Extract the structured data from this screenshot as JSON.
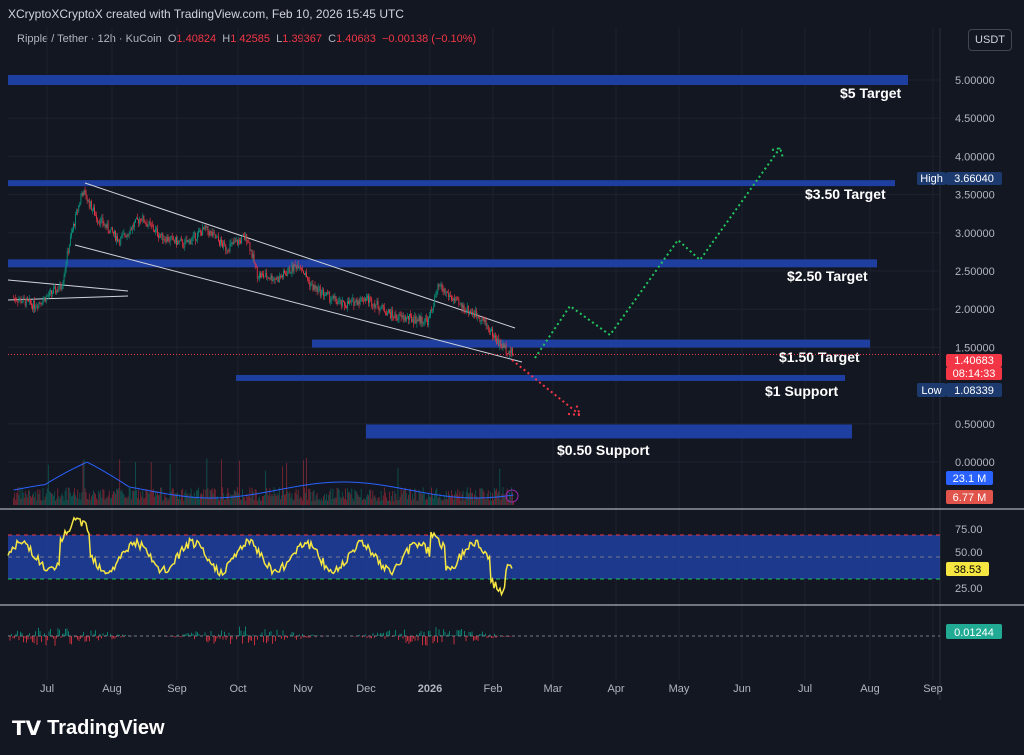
{
  "header": {
    "credit": "XCryptoXCryptoX created with TradingView.com, Feb 10, 2026 15:45 UTC"
  },
  "legend": {
    "symbol": "Ripple / Tether · 12h · KuCoin",
    "o_label": "O",
    "o": "1.40824",
    "h_label": "H",
    "h": "1.42585",
    "l_label": "L",
    "l": "1.39367",
    "c_label": "C",
    "c": "1.40683",
    "change": "−0.00138 (−0.10%)"
  },
  "currency_button": "USDT",
  "colors": {
    "bg": "#131722",
    "zone": "#1e3fa0",
    "up": "#089981",
    "down": "#f23645",
    "rsi": "#f5e642",
    "green_path": "#22c55e",
    "red_path": "#f23645"
  },
  "price_axis": {
    "ticks": [
      "5.00000",
      "4.50000",
      "4.00000",
      "3.50000",
      "3.00000",
      "2.50000",
      "2.00000",
      "1.50000",
      "0.50000",
      "0.00000"
    ],
    "tick_values": [
      5,
      4.5,
      4,
      3.5,
      3,
      2.5,
      2,
      1.5,
      0.5,
      0
    ]
  },
  "badges": {
    "high_label": "High",
    "high": "3.66040",
    "price": "1.40683",
    "countdown": "08:14:33",
    "low_label": "Low",
    "low": "1.08339",
    "vol1": "23.1 M",
    "vol2": "6.77 M",
    "rsi": "38.53",
    "macd": "0.01244"
  },
  "rsi_axis": [
    "75.00",
    "50.00",
    "25.00"
  ],
  "time_axis": [
    "Jul",
    "Aug",
    "Sep",
    "Oct",
    "Nov",
    "Dec",
    "2026",
    "Feb",
    "Mar",
    "Apr",
    "May",
    "Jun",
    "Jul",
    "Aug",
    "Sep"
  ],
  "zones": [
    {
      "label": "$5 Target",
      "price": 5.0
    },
    {
      "label": "$3.50 Target",
      "price": 3.65
    },
    {
      "label": "$2.50 Target",
      "price": 2.6
    },
    {
      "label": "$1.50 Target",
      "price": 1.55
    },
    {
      "label": "$1 Support",
      "price": 1.1
    },
    {
      "label": "$0.50 Support",
      "price": 0.4
    }
  ],
  "price_path": [
    [
      "2025-06-15",
      2.15
    ],
    [
      "2025-06-25",
      2.05
    ],
    [
      "2025-07-08",
      2.3
    ],
    [
      "2025-07-12",
      2.9
    ],
    [
      "2025-07-18",
      3.55
    ],
    [
      "2025-07-25",
      3.2
    ],
    [
      "2025-08-05",
      2.9
    ],
    [
      "2025-08-15",
      3.2
    ],
    [
      "2025-08-25",
      2.95
    ],
    [
      "2025-09-05",
      2.85
    ],
    [
      "2025-09-15",
      3.05
    ],
    [
      "2025-09-25",
      2.8
    ],
    [
      "2025-10-05",
      2.95
    ],
    [
      "2025-10-10",
      2.45
    ],
    [
      "2025-10-20",
      2.4
    ],
    [
      "2025-10-30",
      2.6
    ],
    [
      "2025-11-05",
      2.3
    ],
    [
      "2025-11-20",
      2.05
    ],
    [
      "2025-12-01",
      2.15
    ],
    [
      "2025-12-15",
      1.9
    ],
    [
      "2025-12-31",
      1.85
    ],
    [
      "2026-01-05",
      2.3
    ],
    [
      "2026-01-15",
      2.05
    ],
    [
      "2026-01-25",
      1.9
    ],
    [
      "2026-02-03",
      1.55
    ],
    [
      "2026-02-10",
      1.41
    ]
  ],
  "footer": {
    "logo": "TradingView"
  }
}
